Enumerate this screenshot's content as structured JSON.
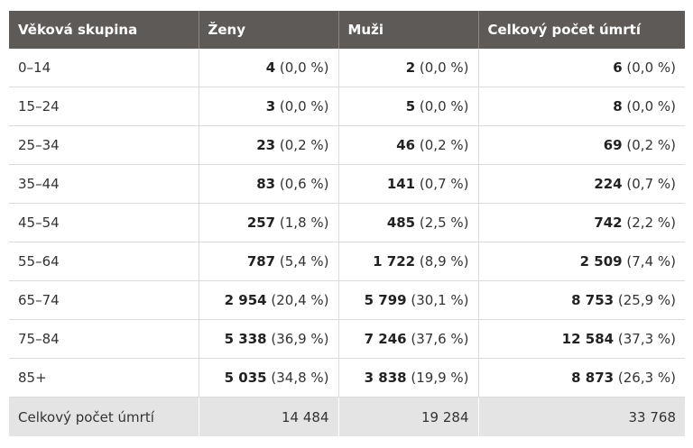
{
  "table": {
    "headers": [
      "Věková skupina",
      "Ženy",
      "Muži",
      "Celkový počet úmrtí"
    ],
    "rows": [
      {
        "age": "0–14",
        "women": {
          "value": "4",
          "pct": "(0,0 %)"
        },
        "men": {
          "value": "2",
          "pct": "(0,0 %)"
        },
        "total": {
          "value": "6",
          "pct": "(0,0 %)"
        }
      },
      {
        "age": "15–24",
        "women": {
          "value": "3",
          "pct": "(0,0 %)"
        },
        "men": {
          "value": "5",
          "pct": "(0,0 %)"
        },
        "total": {
          "value": "8",
          "pct": "(0,0 %)"
        }
      },
      {
        "age": "25–34",
        "women": {
          "value": "23",
          "pct": "(0,2 %)"
        },
        "men": {
          "value": "46",
          "pct": "(0,2 %)"
        },
        "total": {
          "value": "69",
          "pct": "(0,2 %)"
        }
      },
      {
        "age": "35–44",
        "women": {
          "value": "83",
          "pct": "(0,6 %)"
        },
        "men": {
          "value": "141",
          "pct": "(0,7 %)"
        },
        "total": {
          "value": "224",
          "pct": "(0,7 %)"
        }
      },
      {
        "age": "45–54",
        "women": {
          "value": "257",
          "pct": "(1,8 %)"
        },
        "men": {
          "value": "485",
          "pct": "(2,5 %)"
        },
        "total": {
          "value": "742",
          "pct": "(2,2 %)"
        }
      },
      {
        "age": "55–64",
        "women": {
          "value": "787",
          "pct": "(5,4 %)"
        },
        "men": {
          "value": "1 722",
          "pct": "(8,9 %)"
        },
        "total": {
          "value": "2 509",
          "pct": "(7,4 %)"
        }
      },
      {
        "age": "65–74",
        "women": {
          "value": "2 954",
          "pct": "(20,4 %)"
        },
        "men": {
          "value": "5 799",
          "pct": "(30,1 %)"
        },
        "total": {
          "value": "8 753",
          "pct": "(25,9 %)"
        }
      },
      {
        "age": "75–84",
        "women": {
          "value": "5 338",
          "pct": "(36,9 %)"
        },
        "men": {
          "value": "7 246",
          "pct": "(37,6 %)"
        },
        "total": {
          "value": "12 584",
          "pct": "(37,3 %)"
        }
      },
      {
        "age": "85+",
        "women": {
          "value": "5 035",
          "pct": "(34,8 %)"
        },
        "men": {
          "value": "3 838",
          "pct": "(19,9 %)"
        },
        "total": {
          "value": "8 873",
          "pct": "(26,3 %)"
        }
      }
    ],
    "total_row": {
      "label": "Celkový počet úmrtí",
      "women": "14 484",
      "men": "19 284",
      "total": "33 768"
    }
  },
  "colors": {
    "header_bg": "#5e5a58",
    "header_text": "#ffffff",
    "total_row_bg": "#e4e4e4",
    "border": "#dcdcdc"
  }
}
